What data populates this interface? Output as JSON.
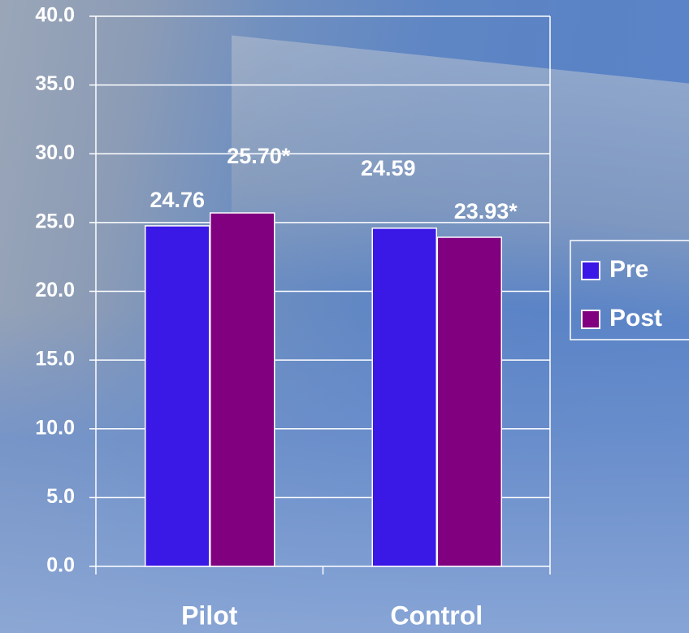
{
  "chart_data": {
    "type": "bar",
    "categories": [
      "Pilot",
      "Control"
    ],
    "series": [
      {
        "name": "Pre",
        "color": "#3a18e6",
        "values": [
          24.76,
          24.59
        ],
        "value_labels": [
          "24.76",
          "24.59"
        ]
      },
      {
        "name": "Post",
        "color": "#800080",
        "values": [
          25.7,
          23.93
        ],
        "value_labels": [
          "25.70*",
          "23.93*"
        ]
      }
    ],
    "ylim": [
      0,
      40
    ],
    "yticks": [
      {
        "value": 0,
        "label": "0.0"
      },
      {
        "value": 5,
        "label": "5.0"
      },
      {
        "value": 10,
        "label": "10.0"
      },
      {
        "value": 15,
        "label": "15.0"
      },
      {
        "value": 20,
        "label": "20.0"
      },
      {
        "value": 25,
        "label": "25.0"
      },
      {
        "value": 30,
        "label": "30.0"
      },
      {
        "value": 35,
        "label": "35.0"
      },
      {
        "value": 40,
        "label": "40.0"
      }
    ],
    "grid": true,
    "legend": "right"
  }
}
